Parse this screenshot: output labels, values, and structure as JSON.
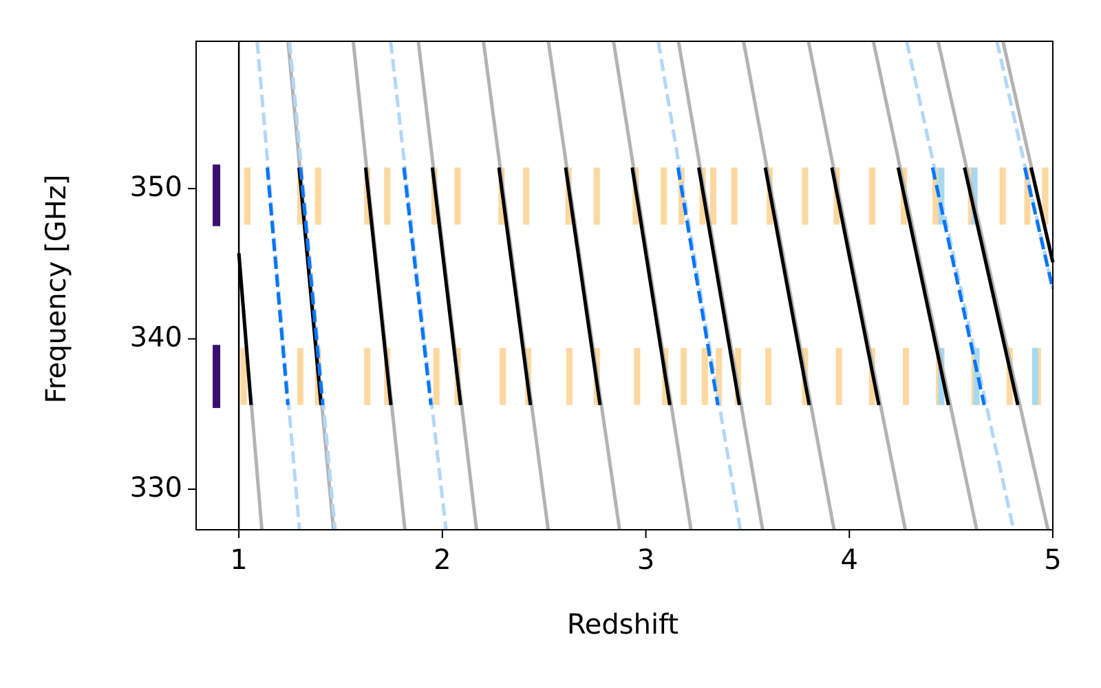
{
  "chart_data": {
    "type": "line",
    "xlabel": "Redshift",
    "ylabel": "Frequency [GHz]",
    "xlim": [
      0.79,
      5
    ],
    "ylim": [
      327.3,
      359.8
    ],
    "xticks": [
      1,
      2,
      3,
      4,
      5
    ],
    "yticks": [
      330,
      340,
      350
    ],
    "vline": 1,
    "windows": {
      "x": 0.89,
      "color": "#3b0f70",
      "ranges": [
        [
          347.5,
          351.6
        ],
        [
          335.4,
          339.6
        ]
      ]
    },
    "bands": [
      {
        "color": "#ffd8a0",
        "ymin": 347.6,
        "ymax": 351.4,
        "x": [
          1.042,
          1.302,
          1.389,
          1.631,
          1.729,
          1.961,
          2.075,
          2.291,
          2.412,
          2.62,
          2.759,
          2.95,
          3.088,
          3.175,
          3.279,
          3.331,
          3.435,
          3.609,
          3.782,
          3.938,
          4.112,
          4.268,
          4.424,
          4.598,
          4.754,
          4.875,
          4.962
        ]
      },
      {
        "color": "#ffd8a0",
        "ymin": 335.6,
        "ymax": 339.4,
        "x": [
          1.024,
          1.302,
          1.389,
          1.631,
          1.729,
          1.971,
          2.075,
          2.297,
          2.422,
          2.624,
          2.759,
          2.957,
          3.095,
          3.186,
          3.29,
          3.359,
          3.453,
          3.602,
          3.782,
          3.949,
          4.112,
          4.278,
          4.441,
          4.615,
          4.788,
          4.927
        ]
      },
      {
        "color": "#a8d8f0",
        "ymin": 347.6,
        "ymax": 351.4,
        "x": [
          4.452,
          4.615
        ]
      },
      {
        "color": "#a8d8f0",
        "ymin": 335.6,
        "ymax": 339.4,
        "x": [
          4.452,
          4.625,
          4.913
        ]
      }
    ],
    "series": [
      {
        "color": "#b3b3b3",
        "dashed": false,
        "x": [
          1.0,
          1.113
        ],
        "values": [
          345.7,
          327.3
        ]
      },
      {
        "color": "#b3b3b3",
        "dashed": false,
        "x": [
          1.242,
          1.465
        ],
        "values": [
          359.8,
          327.3
        ]
      },
      {
        "color": "#b3b3b3",
        "dashed": false,
        "x": [
          1.562,
          1.816
        ],
        "values": [
          359.8,
          327.3
        ]
      },
      {
        "color": "#b3b3b3",
        "dashed": false,
        "x": [
          1.882,
          2.168
        ],
        "values": [
          359.8,
          327.3
        ]
      },
      {
        "color": "#b3b3b3",
        "dashed": false,
        "x": [
          2.202,
          2.52
        ],
        "values": [
          359.8,
          327.3
        ]
      },
      {
        "color": "#b3b3b3",
        "dashed": false,
        "x": [
          2.521,
          2.871
        ],
        "values": [
          359.8,
          327.3
        ]
      },
      {
        "color": "#b3b3b3",
        "dashed": false,
        "x": [
          2.841,
          3.222
        ],
        "values": [
          359.8,
          327.3
        ]
      },
      {
        "color": "#b3b3b3",
        "dashed": false,
        "x": [
          3.16,
          3.574
        ],
        "values": [
          359.8,
          327.3
        ]
      },
      {
        "color": "#b3b3b3",
        "dashed": false,
        "x": [
          3.48,
          3.925
        ],
        "values": [
          359.8,
          327.3
        ]
      },
      {
        "color": "#b3b3b3",
        "dashed": false,
        "x": [
          3.799,
          4.275
        ],
        "values": [
          359.8,
          327.3
        ]
      },
      {
        "color": "#b3b3b3",
        "dashed": false,
        "x": [
          4.118,
          4.626
        ],
        "values": [
          359.8,
          327.3
        ]
      },
      {
        "color": "#b3b3b3",
        "dashed": false,
        "x": [
          4.436,
          4.976
        ],
        "values": [
          359.8,
          327.3
        ]
      },
      {
        "color": "#b3b3b3",
        "dashed": false,
        "x": [
          4.755,
          5
        ],
        "values": [
          359.8,
          345.1
        ]
      },
      {
        "color": "#b3d7f7",
        "dashed": true,
        "x": [
          1.09,
          1.298
        ],
        "values": [
          359.8,
          327.3
        ]
      },
      {
        "color": "#b3d7f7",
        "dashed": true,
        "x": [
          1.249,
          1.473
        ],
        "values": [
          359.8,
          327.3
        ]
      },
      {
        "color": "#b3d7f7",
        "dashed": true,
        "x": [
          1.746,
          2.018
        ],
        "values": [
          359.8,
          327.3
        ]
      },
      {
        "color": "#b3d7f7",
        "dashed": true,
        "x": [
          3.061,
          3.464
        ],
        "values": [
          359.8,
          327.3
        ]
      },
      {
        "color": "#b3d7f7",
        "dashed": true,
        "x": [
          4.282,
          4.807
        ],
        "values": [
          359.8,
          327.3
        ]
      },
      {
        "color": "#b3d7f7",
        "dashed": true,
        "x": [
          4.725,
          5
        ],
        "values": [
          359.8,
          343.3
        ]
      },
      {
        "color": "#000000",
        "dashed": false,
        "x": [
          1.0,
          1.06
        ],
        "values": [
          345.7,
          335.6
        ]
      },
      {
        "color": "#000000",
        "dashed": false,
        "x": [
          1.296,
          1.404
        ],
        "values": [
          351.4,
          335.6
        ]
      },
      {
        "color": "#000000",
        "dashed": false,
        "x": [
          1.623,
          1.747
        ],
        "values": [
          351.4,
          335.6
        ]
      },
      {
        "color": "#000000",
        "dashed": false,
        "x": [
          1.951,
          2.09
        ],
        "values": [
          351.4,
          335.6
        ]
      },
      {
        "color": "#000000",
        "dashed": false,
        "x": [
          2.278,
          2.433
        ],
        "values": [
          351.4,
          335.6
        ]
      },
      {
        "color": "#000000",
        "dashed": false,
        "x": [
          2.606,
          2.775
        ],
        "values": [
          351.4,
          335.6
        ]
      },
      {
        "color": "#000000",
        "dashed": false,
        "x": [
          2.933,
          3.118
        ],
        "values": [
          351.4,
          335.6
        ]
      },
      {
        "color": "#000000",
        "dashed": false,
        "x": [
          3.26,
          3.46
        ],
        "values": [
          351.4,
          335.6
        ]
      },
      {
        "color": "#000000",
        "dashed": false,
        "x": [
          3.587,
          3.803
        ],
        "values": [
          351.4,
          335.6
        ]
      },
      {
        "color": "#000000",
        "dashed": false,
        "x": [
          3.914,
          4.145
        ],
        "values": [
          351.4,
          335.6
        ]
      },
      {
        "color": "#000000",
        "dashed": false,
        "x": [
          4.24,
          4.487
        ],
        "values": [
          351.4,
          335.6
        ]
      },
      {
        "color": "#000000",
        "dashed": false,
        "x": [
          4.566,
          4.828
        ],
        "values": [
          351.4,
          335.6
        ]
      },
      {
        "color": "#000000",
        "dashed": false,
        "x": [
          4.893,
          5
        ],
        "values": [
          351.4,
          345.1
        ]
      },
      {
        "color": "#0a75f5",
        "dashed": true,
        "x": [
          1.14,
          1.241
        ],
        "values": [
          351.4,
          335.6
        ]
      },
      {
        "color": "#0a75f5",
        "dashed": true,
        "x": [
          1.303,
          1.412
        ],
        "values": [
          351.4,
          335.6
        ]
      },
      {
        "color": "#0a75f5",
        "dashed": true,
        "x": [
          1.811,
          1.944
        ],
        "values": [
          351.4,
          335.6
        ]
      },
      {
        "color": "#0a75f5",
        "dashed": true,
        "x": [
          3.158,
          3.354
        ],
        "values": [
          351.4,
          335.6
        ]
      },
      {
        "color": "#0a75f5",
        "dashed": true,
        "x": [
          4.409,
          4.663
        ],
        "values": [
          351.4,
          335.6
        ]
      },
      {
        "color": "#0a75f5",
        "dashed": true,
        "x": [
          4.862,
          5
        ],
        "values": [
          351.4,
          343.3
        ]
      }
    ]
  }
}
